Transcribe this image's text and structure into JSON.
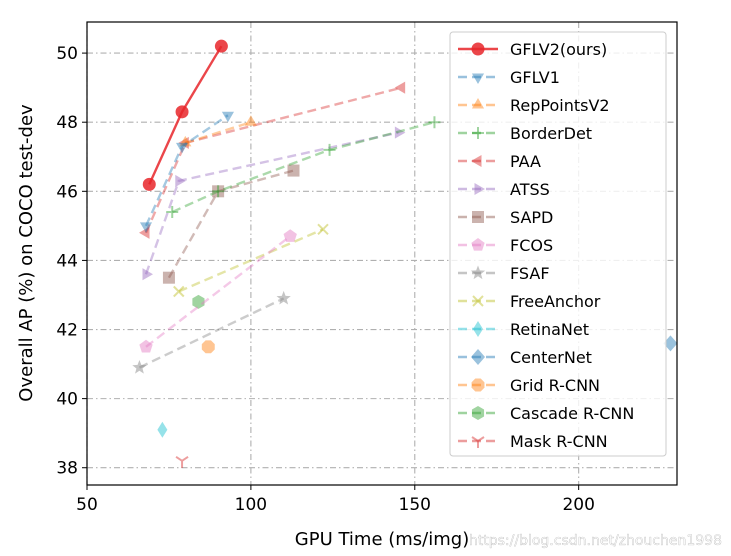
{
  "chart_data": {
    "type": "line",
    "title": "",
    "xlabel": "GPU Time (ms/img)",
    "ylabel": "Overall AP (%) on COCO test-dev",
    "xlim": [
      50,
      230
    ],
    "ylim": [
      37.5,
      50.9
    ],
    "xticks": [
      "50",
      "100",
      "150",
      "200"
    ],
    "yticks": [
      "38",
      "40",
      "42",
      "44",
      "46",
      "48",
      "50"
    ],
    "grid": true,
    "legend_position": "right",
    "series": [
      {
        "name": "GFLV2(ours)",
        "color": "#e8262a",
        "marker": "circle",
        "line": "solid",
        "alpha": 0.85,
        "points": [
          [
            69,
            46.2
          ],
          [
            79,
            48.3
          ],
          [
            91,
            50.2
          ]
        ]
      },
      {
        "name": "GFLV1",
        "color": "#1f77b4",
        "marker": "triangle-down",
        "line": "dashed",
        "alpha": 0.4,
        "points": [
          [
            68,
            45.0
          ],
          [
            79,
            47.3
          ],
          [
            93,
            48.2
          ]
        ]
      },
      {
        "name": "RepPointsV2",
        "color": "#ff7f0e",
        "marker": "triangle-up",
        "line": "dashed",
        "alpha": 0.4,
        "points": [
          [
            80,
            47.4
          ],
          [
            100,
            48.0
          ]
        ]
      },
      {
        "name": "BorderDet",
        "color": "#2ca02c",
        "marker": "plus",
        "line": "dashed",
        "alpha": 0.4,
        "points": [
          [
            76,
            45.4
          ],
          [
            90,
            46.0
          ],
          [
            124,
            47.2
          ],
          [
            156,
            48.0
          ]
        ]
      },
      {
        "name": "PAA",
        "color": "#d62728",
        "marker": "triangle-left",
        "line": "dashed",
        "alpha": 0.4,
        "points": [
          [
            68,
            44.8
          ],
          [
            80,
            47.4
          ],
          [
            146,
            49.0
          ]
        ]
      },
      {
        "name": "ATSS",
        "color": "#9467bd",
        "marker": "triangle-right",
        "line": "dashed",
        "alpha": 0.4,
        "points": [
          [
            68,
            43.6
          ],
          [
            78,
            46.3
          ],
          [
            145,
            47.7
          ]
        ]
      },
      {
        "name": "SAPD",
        "color": "#8c564b",
        "marker": "square",
        "line": "dashed",
        "alpha": 0.4,
        "points": [
          [
            75,
            43.5
          ],
          [
            90,
            46.0
          ],
          [
            113,
            46.6
          ]
        ]
      },
      {
        "name": "FCOS",
        "color": "#e377c2",
        "marker": "pentagon",
        "line": "dashed",
        "alpha": 0.4,
        "points": [
          [
            68,
            41.5
          ],
          [
            112,
            44.7
          ]
        ]
      },
      {
        "name": "FSAF",
        "color": "#7f7f7f",
        "marker": "star",
        "line": "dashed",
        "alpha": 0.4,
        "points": [
          [
            66,
            40.9
          ],
          [
            110,
            42.9
          ]
        ]
      },
      {
        "name": "FreeAnchor",
        "color": "#bcbd22",
        "marker": "x",
        "line": "dashed",
        "alpha": 0.4,
        "points": [
          [
            78,
            43.1
          ],
          [
            122,
            44.9
          ]
        ]
      },
      {
        "name": "RetinaNet",
        "color": "#17becf",
        "marker": "thin-diamond",
        "line": "dashed",
        "alpha": 0.4,
        "points": [
          [
            73,
            39.1
          ]
        ]
      },
      {
        "name": "CenterNet",
        "color": "#1f77b4",
        "marker": "diamond",
        "line": "dashed",
        "alpha": 0.4,
        "points": [
          [
            228,
            41.6
          ]
        ]
      },
      {
        "name": "Grid R-CNN",
        "color": "#ff7f0e",
        "marker": "octagon",
        "line": "dashed",
        "alpha": 0.4,
        "points": [
          [
            87,
            41.5
          ]
        ]
      },
      {
        "name": "Cascade R-CNN",
        "color": "#2ca02c",
        "marker": "hexagon",
        "line": "dashed",
        "alpha": 0.4,
        "points": [
          [
            84,
            42.8
          ]
        ]
      },
      {
        "name": "Mask R-CNN",
        "color": "#d62728",
        "marker": "tri-down",
        "line": "dashed",
        "alpha": 0.4,
        "points": [
          [
            79,
            38.2
          ]
        ]
      }
    ]
  },
  "watermark": "https://blog.csdn.net/zhouchen1998"
}
